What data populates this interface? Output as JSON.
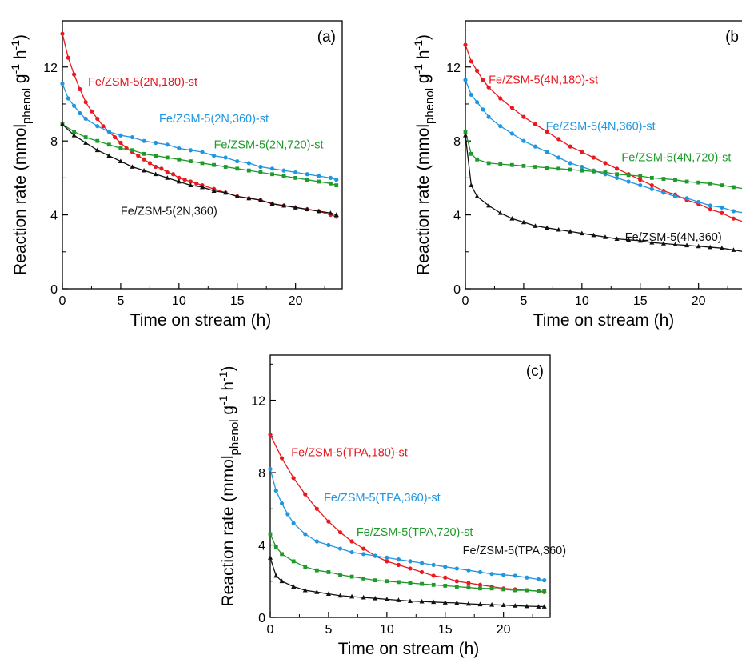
{
  "chart_data": [
    {
      "type": "scatter",
      "panel": "(a)",
      "xlabel": "Time on stream (h)",
      "ylabel": "Reaction rate (mmol phenol g-1 h-1)",
      "ylabel_parts": {
        "main": "Reaction rate (mmol",
        "sub": "phenol",
        "mid": " g",
        "sup1": "-1",
        "mid2": " h",
        "sup2": "-1",
        "end": ")"
      },
      "xlim": [
        0,
        24
      ],
      "ylim": [
        0,
        14.5
      ],
      "xticks": [
        0,
        5,
        10,
        15,
        20
      ],
      "yticks": [
        0,
        4,
        8,
        12
      ],
      "series": [
        {
          "name": "Fe/ZSM-5(2N,180)-st",
          "color": "#e8191f",
          "marker": "circle",
          "x": [
            0,
            0.5,
            1,
            1.5,
            2,
            2.5,
            3,
            3.5,
            4,
            4.5,
            5,
            5.5,
            6,
            6.5,
            7,
            7.5,
            8,
            8.5,
            9,
            9.5,
            10,
            10.5,
            11,
            11.5,
            12,
            13,
            14,
            15,
            16,
            17,
            18,
            19,
            20,
            21,
            22,
            23,
            23.5
          ],
          "y": [
            13.8,
            12.5,
            11.6,
            10.8,
            10.1,
            9.6,
            9.2,
            8.8,
            8.5,
            8.2,
            7.9,
            7.6,
            7.4,
            7.2,
            7.0,
            6.8,
            6.6,
            6.5,
            6.3,
            6.2,
            6.0,
            5.9,
            5.8,
            5.7,
            5.6,
            5.4,
            5.2,
            5.0,
            4.9,
            4.8,
            4.6,
            4.5,
            4.4,
            4.3,
            4.2,
            4.0,
            3.9
          ]
        },
        {
          "name": "Fe/ZSM-5(2N,360)-st",
          "color": "#2196e0",
          "marker": "circle",
          "x": [
            0,
            0.5,
            1,
            1.5,
            2,
            3,
            4,
            5,
            6,
            7,
            8,
            9,
            10,
            11,
            12,
            13,
            14,
            15,
            16,
            17,
            18,
            19,
            20,
            21,
            22,
            23,
            23.5
          ],
          "y": [
            11.1,
            10.3,
            9.9,
            9.5,
            9.2,
            8.8,
            8.5,
            8.3,
            8.2,
            8.0,
            7.9,
            7.8,
            7.6,
            7.5,
            7.4,
            7.2,
            7.1,
            6.9,
            6.8,
            6.6,
            6.5,
            6.4,
            6.3,
            6.2,
            6.1,
            6.0,
            5.9
          ]
        },
        {
          "name": "Fe/ZSM-5(2N,720)-st",
          "color": "#1f9a2a",
          "marker": "square",
          "x": [
            0,
            1,
            2,
            3,
            4,
            5,
            6,
            7,
            8,
            9,
            10,
            11,
            12,
            13,
            14,
            15,
            16,
            17,
            18,
            19,
            20,
            21,
            22,
            23,
            23.5
          ],
          "y": [
            8.9,
            8.5,
            8.2,
            8.0,
            7.8,
            7.6,
            7.5,
            7.3,
            7.2,
            7.1,
            7.0,
            6.9,
            6.8,
            6.7,
            6.6,
            6.5,
            6.4,
            6.3,
            6.2,
            6.1,
            6.0,
            5.9,
            5.8,
            5.7,
            5.6
          ]
        },
        {
          "name": "Fe/ZSM-5(2N,360)",
          "color": "#111111",
          "marker": "triangle",
          "x": [
            0,
            1,
            2,
            3,
            4,
            5,
            6,
            7,
            8,
            9,
            10,
            11,
            12,
            13,
            14,
            15,
            16,
            17,
            18,
            19,
            20,
            21,
            22,
            23,
            23.5
          ],
          "y": [
            8.9,
            8.3,
            7.9,
            7.5,
            7.2,
            6.9,
            6.6,
            6.4,
            6.2,
            6.0,
            5.8,
            5.6,
            5.5,
            5.3,
            5.2,
            5.0,
            4.9,
            4.8,
            4.6,
            4.5,
            4.4,
            4.3,
            4.2,
            4.1,
            4.0
          ]
        }
      ],
      "labels": [
        {
          "text": "Fe/ZSM-5(2N,180)-st",
          "color": "#e8191f",
          "x": 2.2,
          "y": 11.0
        },
        {
          "text": "Fe/ZSM-5(2N,360)-st",
          "color": "#2196e0",
          "x": 8.3,
          "y": 9.0
        },
        {
          "text": "Fe/ZSM-5(2N,720)-st",
          "color": "#1f9a2a",
          "x": 13.0,
          "y": 7.6
        },
        {
          "text": "Fe/ZSM-5(2N,360)",
          "color": "#111111",
          "x": 5.0,
          "y": 4.0
        }
      ]
    },
    {
      "type": "scatter",
      "panel": "(b",
      "xlabel": "Time on stream (h)",
      "ylabel": "Reaction rate (mmol phenol g-1 h-1)",
      "ylabel_parts": {
        "main": "Reaction rate (mmol",
        "sub": "phenol",
        "mid": " g",
        "sup1": "-1",
        "mid2": " h",
        "sup2": "-1",
        "end": ")"
      },
      "xlim": [
        0,
        24
      ],
      "ylim": [
        0,
        14.5
      ],
      "xticks": [
        0,
        5,
        10,
        15,
        20
      ],
      "yticks": [
        0,
        4,
        8,
        12
      ],
      "series": [
        {
          "name": "Fe/ZSM-5(4N,180)-st",
          "color": "#e8191f",
          "marker": "circle",
          "x": [
            0,
            0.5,
            1,
            1.5,
            2,
            3,
            4,
            5,
            6,
            7,
            8,
            9,
            10,
            11,
            12,
            13,
            14,
            15,
            16,
            17,
            18,
            19,
            20,
            21,
            22,
            23,
            24
          ],
          "y": [
            13.2,
            12.3,
            11.8,
            11.3,
            10.9,
            10.3,
            9.8,
            9.3,
            8.9,
            8.5,
            8.1,
            7.7,
            7.4,
            7.1,
            6.8,
            6.5,
            6.2,
            5.9,
            5.6,
            5.3,
            5.1,
            4.8,
            4.6,
            4.3,
            4.1,
            3.8,
            3.6
          ]
        },
        {
          "name": "Fe/ZSM-5(4N,360)-st",
          "color": "#2196e0",
          "marker": "circle",
          "x": [
            0,
            0.5,
            1,
            1.5,
            2,
            3,
            4,
            5,
            6,
            7,
            8,
            9,
            10,
            11,
            12,
            13,
            14,
            15,
            16,
            17,
            18,
            19,
            20,
            21,
            22,
            23,
            24
          ],
          "y": [
            11.3,
            10.5,
            10.1,
            9.7,
            9.3,
            8.8,
            8.4,
            8.0,
            7.7,
            7.4,
            7.1,
            6.8,
            6.6,
            6.4,
            6.2,
            6.0,
            5.8,
            5.6,
            5.4,
            5.2,
            5.0,
            4.9,
            4.7,
            4.5,
            4.4,
            4.2,
            4.1
          ]
        },
        {
          "name": "Fe/ZSM-5(4N,720)-st",
          "color": "#1f9a2a",
          "marker": "square",
          "x": [
            0,
            0.5,
            1,
            2,
            3,
            4,
            5,
            6,
            7,
            8,
            9,
            10,
            11,
            12,
            13,
            14,
            15,
            16,
            17,
            18,
            19,
            20,
            21,
            22,
            23,
            24
          ],
          "y": [
            8.5,
            7.3,
            7.0,
            6.8,
            6.75,
            6.7,
            6.65,
            6.6,
            6.55,
            6.5,
            6.45,
            6.4,
            6.35,
            6.3,
            6.2,
            6.15,
            6.1,
            6.0,
            5.95,
            5.9,
            5.8,
            5.75,
            5.7,
            5.6,
            5.5,
            5.4
          ]
        },
        {
          "name": "Fe/ZSM-5(4N,360)",
          "color": "#111111",
          "marker": "triangle",
          "x": [
            0,
            0.5,
            1,
            2,
            3,
            4,
            5,
            6,
            7,
            8,
            9,
            10,
            11,
            12,
            13,
            14,
            15,
            16,
            17,
            18,
            19,
            20,
            21,
            22,
            23,
            24
          ],
          "y": [
            8.3,
            5.6,
            5.0,
            4.5,
            4.1,
            3.8,
            3.6,
            3.4,
            3.3,
            3.2,
            3.1,
            3.0,
            2.9,
            2.8,
            2.7,
            2.65,
            2.6,
            2.5,
            2.45,
            2.4,
            2.35,
            2.3,
            2.25,
            2.2,
            2.1,
            2.0
          ]
        }
      ],
      "labels": [
        {
          "text": "Fe/ZSM-5(4N,180)-st",
          "color": "#e8191f",
          "x": 2.0,
          "y": 11.1
        },
        {
          "text": "Fe/ZSM-5(4N,360)-st",
          "color": "#2196e0",
          "x": 6.9,
          "y": 8.6
        },
        {
          "text": "Fe/ZSM-5(4N,720)-st",
          "color": "#1f9a2a",
          "x": 13.4,
          "y": 6.9
        },
        {
          "text": "Fe/ZSM-5(4N,360)",
          "color": "#111111",
          "x": 13.7,
          "y": 2.6
        }
      ]
    },
    {
      "type": "scatter",
      "panel": "(c)",
      "xlabel": "Time on stream (h)",
      "ylabel": "Reaction rate (mmol phenol g-1 h-1)",
      "ylabel_parts": {
        "main": "Reaction rate (mmol",
        "sub": "phenol",
        "mid": " g",
        "sup1": "-1",
        "mid2": " h",
        "sup2": "-1",
        "end": ")"
      },
      "xlim": [
        0,
        24
      ],
      "ylim": [
        0,
        14.5
      ],
      "xticks": [
        0,
        5,
        10,
        15,
        20
      ],
      "yticks": [
        0,
        4,
        8,
        12
      ],
      "series": [
        {
          "name": "Fe/ZSM-5(TPA,180)-st",
          "color": "#e8191f",
          "marker": "circle",
          "x": [
            0,
            1,
            2,
            3,
            4,
            5,
            6,
            7,
            8,
            9,
            10,
            11,
            12,
            13,
            14,
            15,
            16,
            17,
            18,
            19,
            20,
            21,
            22,
            23,
            23.5
          ],
          "y": [
            10.1,
            8.8,
            7.7,
            6.8,
            6.0,
            5.3,
            4.7,
            4.2,
            3.8,
            3.4,
            3.1,
            2.9,
            2.7,
            2.5,
            2.3,
            2.2,
            2.0,
            1.9,
            1.8,
            1.7,
            1.6,
            1.55,
            1.5,
            1.45,
            1.4
          ]
        },
        {
          "name": "Fe/ZSM-5(TPA,360)-st",
          "color": "#2196e0",
          "marker": "circle",
          "x": [
            0,
            0.5,
            1,
            1.5,
            2,
            3,
            4,
            5,
            6,
            7,
            8,
            9,
            10,
            11,
            12,
            13,
            14,
            15,
            16,
            17,
            18,
            19,
            20,
            21,
            22,
            23,
            23.5
          ],
          "y": [
            8.2,
            7.0,
            6.3,
            5.7,
            5.2,
            4.6,
            4.2,
            4.0,
            3.8,
            3.6,
            3.5,
            3.4,
            3.3,
            3.2,
            3.1,
            3.0,
            2.9,
            2.8,
            2.7,
            2.6,
            2.5,
            2.4,
            2.35,
            2.3,
            2.2,
            2.1,
            2.05
          ]
        },
        {
          "name": "Fe/ZSM-5(TPA,720)-st",
          "color": "#1f9a2a",
          "marker": "square",
          "x": [
            0,
            0.5,
            1,
            2,
            3,
            4,
            5,
            6,
            7,
            8,
            9,
            10,
            11,
            12,
            13,
            14,
            15,
            16,
            17,
            18,
            19,
            20,
            21,
            22,
            23,
            23.5
          ],
          "y": [
            4.6,
            3.9,
            3.5,
            3.1,
            2.8,
            2.6,
            2.5,
            2.35,
            2.25,
            2.15,
            2.05,
            2.0,
            1.95,
            1.9,
            1.85,
            1.8,
            1.75,
            1.7,
            1.65,
            1.6,
            1.6,
            1.55,
            1.5,
            1.5,
            1.45,
            1.45
          ]
        },
        {
          "name": "Fe/ZSM-5(TPA,360)",
          "color": "#111111",
          "marker": "triangle",
          "x": [
            0,
            0.5,
            1,
            2,
            3,
            4,
            5,
            6,
            7,
            8,
            9,
            10,
            11,
            12,
            13,
            14,
            15,
            16,
            17,
            18,
            19,
            20,
            21,
            22,
            23,
            23.5
          ],
          "y": [
            3.3,
            2.3,
            2.0,
            1.7,
            1.5,
            1.4,
            1.3,
            1.2,
            1.15,
            1.1,
            1.05,
            1.0,
            0.95,
            0.9,
            0.88,
            0.85,
            0.82,
            0.8,
            0.75,
            0.72,
            0.7,
            0.68,
            0.65,
            0.62,
            0.6,
            0.6
          ]
        }
      ],
      "labels": [
        {
          "text": "Fe/ZSM-5(TPA,180)-st",
          "color": "#e8191f",
          "x": 1.8,
          "y": 8.9
        },
        {
          "text": "Fe/ZSM-5(TPA,360)-st",
          "color": "#2196e0",
          "x": 4.6,
          "y": 6.4
        },
        {
          "text": "Fe/ZSM-5(TPA,720)-st",
          "color": "#1f9a2a",
          "x": 7.4,
          "y": 4.5
        },
        {
          "text": "Fe/ZSM-5(TPA,360)",
          "color": "#111111",
          "x": 16.5,
          "y": 3.5
        }
      ]
    }
  ]
}
